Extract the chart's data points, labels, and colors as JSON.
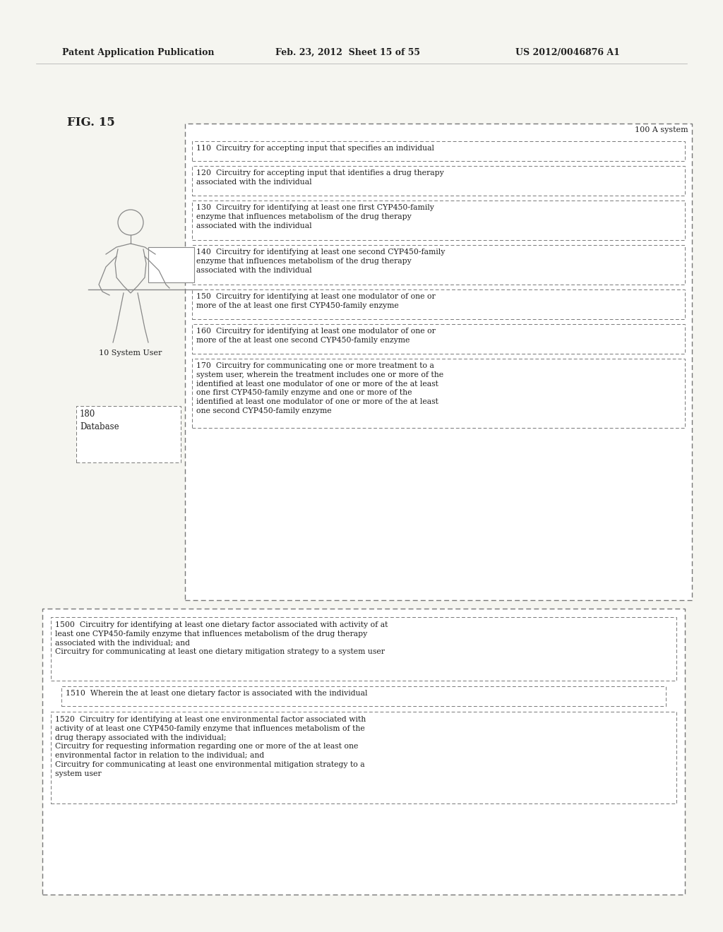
{
  "bg_color": "#f5f5f0",
  "header_text_left": "Patent Application Publication",
  "header_text_mid": "Feb. 23, 2012  Sheet 15 of 55",
  "header_text_right": "US 2012/0046876 A1",
  "fig_label": "FIG. 15",
  "outer_box_label": "100 A system",
  "system_user_label": "10 System User",
  "database_label": "180\nDatabase",
  "boxes": [
    {
      "id": "110",
      "text": "110  Circuitry for accepting input that specifies an individual",
      "n_lines": 1
    },
    {
      "id": "120",
      "text": "120  Circuitry for accepting input that identifies a drug therapy\nassociated with the individual",
      "n_lines": 2
    },
    {
      "id": "130",
      "text": "130  Circuitry for identifying at least one first CYP450-family\nenzyme that influences metabolism of the drug therapy\nassociated with the individual",
      "n_lines": 3
    },
    {
      "id": "140",
      "text": "140  Circuitry for identifying at least one second CYP450-family\nenzyme that influences metabolism of the drug therapy\nassociated with the individual",
      "n_lines": 3
    },
    {
      "id": "150",
      "text": "150  Circuitry for identifying at least one modulator of one or\nmore of the at least one first CYP450-family enzyme",
      "n_lines": 2
    },
    {
      "id": "160",
      "text": "160  Circuitry for identifying at least one modulator of one or\nmore of the at least one second CYP450-family enzyme",
      "n_lines": 2
    },
    {
      "id": "170",
      "text": "170  Circuitry for communicating one or more treatment to a\nsystem user, wherein the treatment includes one or more of the\nidentified at least one modulator of one or more of the at least\none first CYP450-family enzyme and one or more of the\nidentified at least one modulator of one or more of the at least\none second CYP450-family enzyme",
      "n_lines": 6
    }
  ],
  "bottom_boxes": [
    {
      "id": "1500",
      "text": "1500  Circuitry for identifying at least one dietary factor associated with activity of at\nleast one CYP450-family enzyme that influences metabolism of the drug therapy\nassociated with the individual; and\nCircuitry for communicating at least one dietary mitigation strategy to a system user",
      "n_lines": 4
    },
    {
      "id": "1510",
      "text": "1510  Wherein the at least one dietary factor is associated with the individual",
      "n_lines": 1
    },
    {
      "id": "1520",
      "text": "1520  Circuitry for identifying at least one environmental factor associated with\nactivity of at least one CYP450-family enzyme that influences metabolism of the\ndrug therapy associated with the individual;\nCircuitry for requesting information regarding one or more of the at least one\nenvironmental factor in relation to the individual; and\nCircuitry for communicating at least one environmental mitigation strategy to a\nsystem user",
      "n_lines": 7
    }
  ],
  "line_color": "#666666",
  "text_color": "#222222",
  "font_size": 7.8,
  "header_font_size": 9.0
}
